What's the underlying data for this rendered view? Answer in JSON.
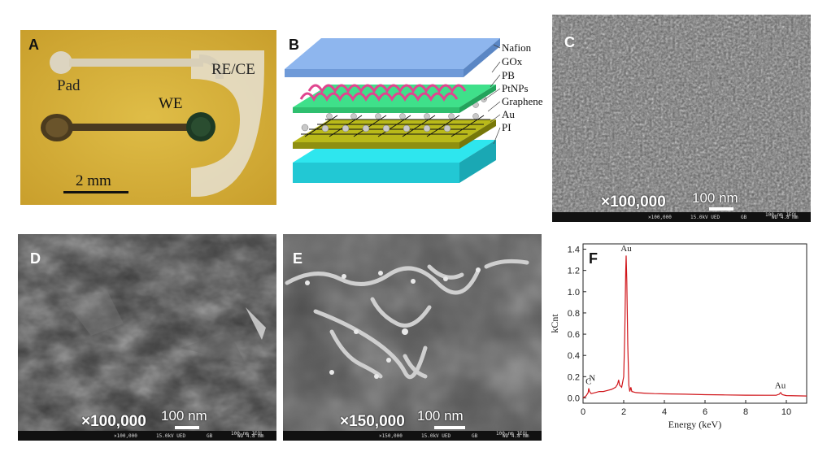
{
  "panelA": {
    "label": "A",
    "pad": "Pad",
    "we": "WE",
    "rece": "RE/CE",
    "scale": "2 mm"
  },
  "panelB": {
    "label": "B",
    "layers": [
      "Nafion",
      "GOx",
      "PB",
      "PtNPs",
      "Graphene",
      "Au",
      "PI"
    ]
  },
  "panelC": {
    "label": "C",
    "magnification": "×100,000",
    "scale": "100 nm",
    "bar_scale": "100 nm JEOL",
    "bar_mag": "×100,000",
    "bar_kv": "15.0kV UED",
    "bar_gb": "GB",
    "bar_wd": "WD 4.8 mm"
  },
  "panelD": {
    "label": "D",
    "magnification": "×100,000",
    "scale": "100 nm",
    "bar_scale": "100 nm JEOL",
    "bar_mag": "×100,000",
    "bar_kv": "15.0kV UED",
    "bar_gb": "GB",
    "bar_wd": "WD 4.8 mm"
  },
  "panelE": {
    "label": "E",
    "magnification": "×150,000",
    "scale": "100 nm",
    "bar_scale": "100 nm JEOL",
    "bar_mag": "×150,000",
    "bar_kv": "15.0kV UED",
    "bar_gb": "GB",
    "bar_wd": "WD 4.8 mm"
  },
  "panelF": {
    "label": "F",
    "chart_data": {
      "type": "line",
      "xlabel": "Energy (keV)",
      "ylabel": "kCnt",
      "xlim": [
        0,
        11
      ],
      "ylim": [
        -0.05,
        1.45
      ],
      "xticks": [
        0,
        2,
        4,
        6,
        8,
        10
      ],
      "yticks": [
        0.0,
        0.2,
        0.4,
        0.6,
        0.8,
        1.0,
        1.2,
        1.4
      ],
      "color": "#d0151a",
      "annotations": [
        {
          "text": "Au",
          "x": 2.12,
          "y": 1.38
        },
        {
          "text": "C",
          "x": 0.27,
          "y": 0.13
        },
        {
          "text": "N",
          "x": 0.45,
          "y": 0.16
        },
        {
          "text": "Au",
          "x": 9.7,
          "y": 0.09
        }
      ],
      "series": [
        {
          "x": [
            0,
            0.15,
            0.25,
            0.28,
            0.32,
            0.4,
            0.6,
            0.8,
            1.0,
            1.2,
            1.4,
            1.6,
            1.7,
            1.75,
            1.8,
            1.9,
            2.0,
            2.05,
            2.1,
            2.12,
            2.15,
            2.2,
            2.25,
            2.3,
            2.35,
            2.4,
            2.6,
            3.0,
            3.5,
            4.0,
            5.0,
            6.0,
            7.0,
            8.0,
            9.0,
            9.5,
            9.65,
            9.72,
            9.8,
            10.0,
            10.5,
            11.0
          ],
          "y": [
            0.0,
            0.02,
            0.05,
            0.09,
            0.06,
            0.04,
            0.05,
            0.06,
            0.06,
            0.07,
            0.08,
            0.1,
            0.13,
            0.17,
            0.12,
            0.1,
            0.2,
            0.6,
            1.2,
            1.34,
            1.1,
            0.5,
            0.12,
            0.06,
            0.1,
            0.06,
            0.05,
            0.045,
            0.04,
            0.038,
            0.035,
            0.03,
            0.028,
            0.026,
            0.025,
            0.025,
            0.035,
            0.05,
            0.03,
            0.022,
            0.02,
            0.018
          ]
        }
      ]
    }
  }
}
